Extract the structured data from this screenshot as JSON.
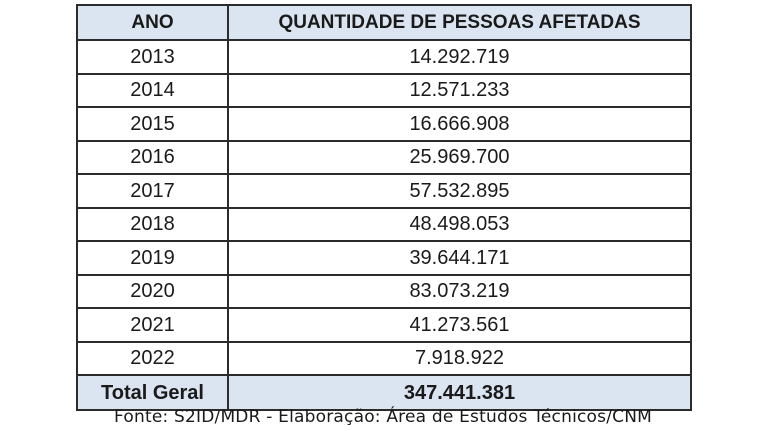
{
  "table": {
    "headers": {
      "year": "ANO",
      "quantity": "QUANTIDADE DE PESSOAS AFETADAS"
    },
    "rows": [
      {
        "year": "2013",
        "quantity": "14.292.719"
      },
      {
        "year": "2014",
        "quantity": "12.571.233"
      },
      {
        "year": "2015",
        "quantity": "16.666.908"
      },
      {
        "year": "2016",
        "quantity": "25.969.700"
      },
      {
        "year": "2017",
        "quantity": "57.532.895"
      },
      {
        "year": "2018",
        "quantity": "48.498.053"
      },
      {
        "year": "2019",
        "quantity": "39.644.171"
      },
      {
        "year": "2020",
        "quantity": "83.073.219"
      },
      {
        "year": "2021",
        "quantity": "41.273.561"
      },
      {
        "year": "2022",
        "quantity": "7.918.922"
      }
    ],
    "total": {
      "label": "Total Geral",
      "value": "347.441.381"
    }
  },
  "source": "Fonte: S2ID/MDR - Elaboração: Área de Estudos Técnicos/CNM",
  "colors": {
    "header_bg": "#dbe4f1",
    "border": "#2b2b2b",
    "text": "#1a1a1a"
  }
}
